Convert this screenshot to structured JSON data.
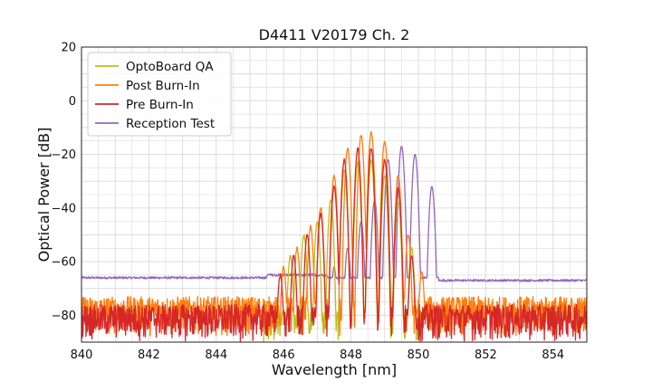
{
  "chart_data": {
    "type": "line",
    "title": "D4411 V20179 Ch. 2",
    "xlabel": "Wavelength [nm]",
    "ylabel": "Optical Power [dB]",
    "xlim": [
      840,
      855
    ],
    "ylim": [
      -90,
      20
    ],
    "xticks": [
      840,
      842,
      844,
      846,
      848,
      850,
      852,
      854
    ],
    "yticks": [
      20,
      0,
      -20,
      -40,
      -60,
      -80
    ],
    "xtick_labels": [
      "840",
      "842",
      "844",
      "846",
      "848",
      "850",
      "852",
      "854"
    ],
    "ytick_labels": [
      "20",
      "0",
      "−20",
      "−40",
      "−60",
      "−80"
    ],
    "grid": true,
    "legend_position": "top-left",
    "series": [
      {
        "name": "OptoBoard QA",
        "color": "#bcbd22",
        "noise_floor": [
          -90,
          -78
        ],
        "noise_range": [
          845.4,
          850.1
        ],
        "peaks": [
          [
            846.2,
            -58
          ],
          [
            846.6,
            -50
          ],
          [
            847.0,
            -45
          ],
          [
            847.4,
            -37
          ],
          [
            847.8,
            -26
          ],
          [
            848.2,
            -23
          ],
          [
            848.6,
            -22
          ],
          [
            849.0,
            -28
          ],
          [
            849.4,
            -37
          ],
          [
            849.8,
            -55
          ]
        ]
      },
      {
        "name": "Post Burn-In",
        "color": "#ff7f0e",
        "noise_floor": [
          -88,
          -73
        ],
        "noise_range": [
          840,
          855
        ],
        "peaks": [
          [
            846.0,
            -62
          ],
          [
            846.4,
            -55
          ],
          [
            846.8,
            -47
          ],
          [
            847.1,
            -40
          ],
          [
            847.5,
            -28
          ],
          [
            847.9,
            -18
          ],
          [
            848.3,
            -13
          ],
          [
            848.6,
            -12
          ],
          [
            849.0,
            -15
          ],
          [
            849.4,
            -28
          ],
          [
            849.7,
            -50
          ],
          [
            850.1,
            -64
          ]
        ]
      },
      {
        "name": "Pre Burn-In",
        "color": "#d62728",
        "noise_floor": [
          -90,
          -76
        ],
        "noise_range": [
          840,
          855
        ],
        "peaks": [
          [
            845.9,
            -65
          ],
          [
            846.3,
            -58
          ],
          [
            846.7,
            -50
          ],
          [
            847.1,
            -42
          ],
          [
            847.5,
            -32
          ],
          [
            847.8,
            -22
          ],
          [
            848.2,
            -18
          ],
          [
            848.6,
            -18
          ],
          [
            849.0,
            -22
          ],
          [
            849.4,
            -32
          ],
          [
            849.8,
            -58
          ]
        ]
      },
      {
        "name": "Reception Test",
        "color": "#9467bd",
        "baseline_level": -66,
        "baseline_right_level": -67,
        "peaks": [
          [
            847.5,
            -62
          ],
          [
            847.9,
            -55
          ],
          [
            848.3,
            -45
          ],
          [
            848.7,
            -37
          ],
          [
            849.1,
            -22
          ],
          [
            849.5,
            -17
          ],
          [
            849.9,
            -20
          ],
          [
            850.4,
            -32
          ]
        ]
      }
    ]
  }
}
